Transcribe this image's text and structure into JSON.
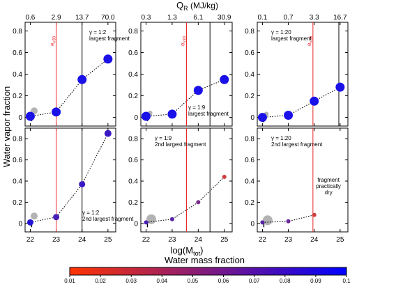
{
  "chart_data": {
    "type": "scatter",
    "top_axis": {
      "label": "Q",
      "label_subscript": "R",
      "label_unit": "(MJ/kg)",
      "columns": [
        {
          "ticks": [
            "0.6",
            "2.9",
            "13.7",
            "70.0"
          ]
        },
        {
          "ticks": [
            "0.3",
            "1.3",
            "6.1",
            "30.9"
          ]
        },
        {
          "ticks": [
            "0.1",
            "0.7",
            "3.3",
            "16.7"
          ]
        }
      ]
    },
    "xlabel": {
      "main": "log(M",
      "subscript": "tot",
      "close": ")"
    },
    "ylabel": "Water vapor fraction",
    "x_ticks": [
      "22",
      "23",
      "24",
      "25"
    ],
    "x_range": [
      21.8,
      25.3
    ],
    "top_row_ylim": [
      -0.08,
      0.88
    ],
    "top_row_yticks": [
      "0",
      "0.2",
      "0.4",
      "0.6",
      "0.8"
    ],
    "bottom_row_ylim": [
      -0.08,
      0.9
    ],
    "bottom_row_yticks": [
      "0",
      "0.2",
      "0.4",
      "0.6",
      "0.8"
    ],
    "panels": [
      {
        "row": 0,
        "col": 0,
        "gamma_text": "γ = 1:2",
        "fragment_text": "largest fragment",
        "fragment_ordinal": "",
        "note_position": "top-right",
        "red_line_x": 23.0,
        "red_label": "e",
        "red_label_sub": "v30",
        "black_line_x": 24.0,
        "gray_points": [
          {
            "x": 22.15,
            "y": 0.06,
            "size": "medium"
          }
        ],
        "points": [
          {
            "x": 22.0,
            "y": 0.01,
            "color": "#1a10e8"
          },
          {
            "x": 23.0,
            "y": 0.05,
            "color": "#1a10e8"
          },
          {
            "x": 24.0,
            "y": 0.35,
            "color": "#1a10e8"
          },
          {
            "x": 25.0,
            "y": 0.54,
            "color": "#1a10e8"
          }
        ]
      },
      {
        "row": 0,
        "col": 1,
        "gamma_text": "γ = 1:9",
        "fragment_text": "largest fragment",
        "fragment_ordinal": "",
        "note_position": "bottom-right",
        "red_line_x": 23.55,
        "red_label": "e",
        "red_label_sub": "v30",
        "black_line_x": 24.45,
        "gray_points": [
          {
            "x": 22.15,
            "y": 0.04,
            "size": "small"
          }
        ],
        "points": [
          {
            "x": 22.0,
            "y": 0.01,
            "color": "#1a10e8"
          },
          {
            "x": 23.0,
            "y": 0.03,
            "color": "#1a10e8"
          },
          {
            "x": 24.0,
            "y": 0.25,
            "color": "#1a10e8"
          },
          {
            "x": 25.0,
            "y": 0.35,
            "color": "#1a10e8"
          }
        ]
      },
      {
        "row": 0,
        "col": 2,
        "gamma_text": "γ = 1:20",
        "fragment_text": "largest fragment",
        "fragment_ordinal": "",
        "note_position": "top-left",
        "red_line_x": 23.95,
        "red_label": "e",
        "red_label_sub": "v30",
        "black_line_x": 24.95,
        "gray_points": [
          {
            "x": 22.15,
            "y": 0.03,
            "size": "small"
          }
        ],
        "points": [
          {
            "x": 22.0,
            "y": 0.0,
            "color": "#1a10e8"
          },
          {
            "x": 23.0,
            "y": 0.02,
            "color": "#1a10e8"
          },
          {
            "x": 24.0,
            "y": 0.15,
            "color": "#1a10e8"
          },
          {
            "x": 25.0,
            "y": 0.28,
            "color": "#1a10e8"
          }
        ]
      },
      {
        "row": 1,
        "col": 0,
        "gamma_text": "γ = 1:2",
        "fragment_text": "largest fragment",
        "fragment_ordinal": "2nd",
        "note_position": "bottom-right",
        "red_line_x": 23.0,
        "red_label": "",
        "red_label_sub": "",
        "black_line_x": 24.0,
        "gray_points": [
          {
            "x": 22.15,
            "y": 0.07,
            "size": "medium"
          }
        ],
        "points": [
          {
            "x": 22.0,
            "y": 0.01,
            "color": "#2614d6"
          },
          {
            "x": 23.0,
            "y": 0.06,
            "color": "#4a1fb8"
          },
          {
            "x": 24.0,
            "y": 0.37,
            "color": "#3a18c4"
          },
          {
            "x": 25.0,
            "y": 0.85,
            "color": "#3a18c4"
          }
        ]
      },
      {
        "row": 1,
        "col": 1,
        "gamma_text": "γ = 1:9",
        "fragment_text": "largest fragment",
        "fragment_ordinal": "2nd",
        "note_position": "top-left",
        "red_line_x": 23.55,
        "red_label": "",
        "red_label_sub": "",
        "black_line_x": 24.45,
        "gray_points": [
          {
            "x": 22.2,
            "y": 0.04,
            "size": "large"
          }
        ],
        "points": [
          {
            "x": 22.0,
            "y": 0.01,
            "color": "#4a1fb8"
          },
          {
            "x": 23.0,
            "y": 0.04,
            "color": "#5a25a8"
          },
          {
            "x": 24.0,
            "y": 0.2,
            "color": "#7a2a8c"
          },
          {
            "x": 25.0,
            "y": 0.44,
            "color": "#d13a3a"
          }
        ]
      },
      {
        "row": 1,
        "col": 2,
        "gamma_text": "γ = 1:20",
        "fragment_text": "largest fragment",
        "fragment_ordinal": "2nd",
        "note_position": "top-left",
        "extra_note": [
          "fragment",
          "practically",
          "dry"
        ],
        "red_line_x": 23.95,
        "red_label": "",
        "red_label_sub": "",
        "black_line_x": null,
        "gray_points": [
          {
            "x": 22.2,
            "y": 0.03,
            "size": "large"
          }
        ],
        "points": [
          {
            "x": 22.0,
            "y": 0.01,
            "color": "#5a25a8"
          },
          {
            "x": 23.0,
            "y": 0.02,
            "color": "#6a279a"
          },
          {
            "x": 24.0,
            "y": 0.08,
            "color": "#d13a3a"
          }
        ]
      }
    ],
    "colorbar": {
      "title": "Water mass fraction",
      "range": [
        0.01,
        0.1
      ],
      "ticks": [
        "0.01",
        "0.02",
        "0.03",
        "0.04",
        "0.05",
        "0.06",
        "0.07",
        "0.08",
        "0.09",
        "0.1"
      ],
      "colors": [
        "#ff3300",
        "#0000ff"
      ]
    }
  }
}
